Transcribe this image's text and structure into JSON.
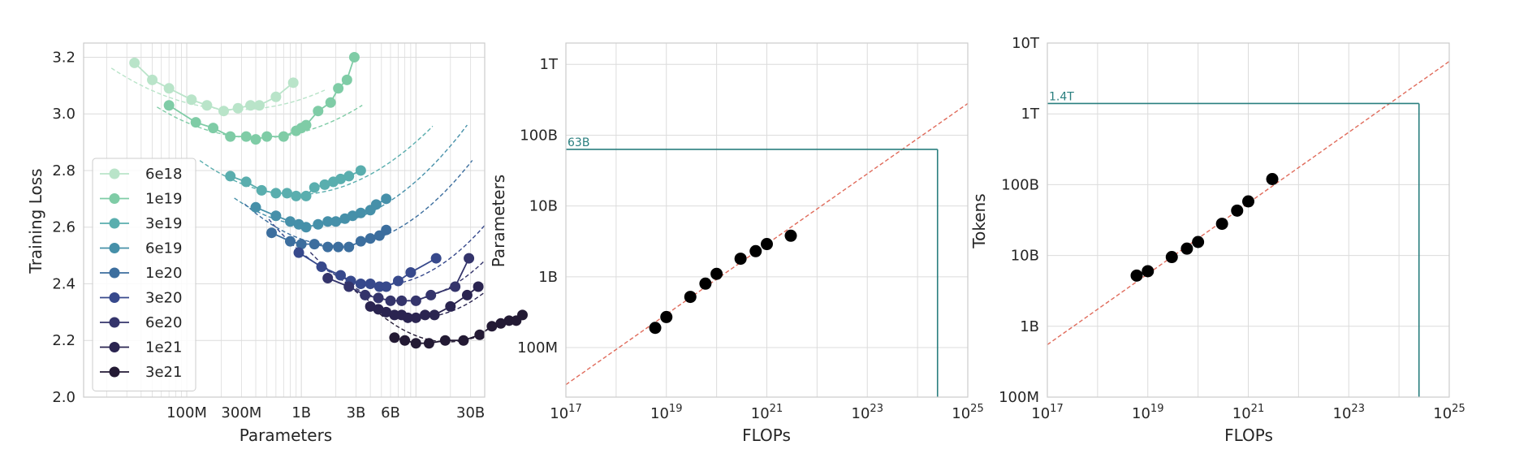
{
  "chart_data": [
    {
      "type": "line",
      "xlabel": "Parameters",
      "ylabel": "Training Loss",
      "xscale": "log",
      "ylim": [
        2.0,
        3.25
      ],
      "yticks": [
        2.0,
        2.2,
        2.4,
        2.6,
        2.8,
        3.0,
        3.2
      ],
      "ytick_labels": [
        "2.0",
        "2.2",
        "2.4",
        "2.6",
        "2.8",
        "3.0",
        "3.2"
      ],
      "xticks": [
        100000000.0,
        300000000.0,
        1000000000.0,
        3000000000.0,
        6000000000.0,
        30000000000.0
      ],
      "xtick_labels": [
        "100M",
        "300M",
        "1B",
        "3B",
        "6B",
        "30B"
      ],
      "grid": true,
      "legend_position": "lower-left",
      "series": [
        {
          "name": "6e18",
          "color": "#b9e4c9",
          "x": [
            35000000.0,
            50000000.0,
            70000000.0,
            110000000.0,
            150000000.0,
            210000000.0,
            280000000.0,
            360000000.0,
            430000000.0,
            600000000.0,
            850000000.0
          ],
          "y": [
            3.18,
            3.12,
            3.09,
            3.05,
            3.03,
            3.01,
            3.02,
            3.03,
            3.03,
            3.06,
            3.11
          ],
          "fit": {
            "min_x": 280000000.0,
            "min_y": 3.015,
            "curvature": 0.12,
            "x_from": 22000000.0,
            "x_to": 1600000000.0
          }
        },
        {
          "name": "1e19",
          "color": "#7fcca6",
          "x": [
            70000000.0,
            120000000.0,
            170000000.0,
            240000000.0,
            330000000.0,
            400000000.0,
            500000000.0,
            700000000.0,
            900000000.0,
            1000000000.0,
            1100000000.0,
            1400000000.0,
            1800000000.0,
            2100000000.0,
            2500000000.0,
            2900000000.0
          ],
          "y": [
            3.03,
            2.97,
            2.95,
            2.92,
            2.92,
            2.91,
            2.92,
            2.92,
            2.94,
            2.95,
            2.96,
            3.01,
            3.04,
            3.09,
            3.12,
            3.2
          ],
          "fit": {
            "min_x": 420000000.0,
            "min_y": 2.915,
            "curvature": 0.14,
            "x_from": 55000000.0,
            "x_to": 3400000000.0
          }
        },
        {
          "name": "3e19",
          "color": "#5aaeae",
          "x": [
            240000000.0,
            330000000.0,
            450000000.0,
            600000000.0,
            750000000.0,
            900000000.0,
            1100000000.0,
            1300000000.0,
            1600000000.0,
            1900000000.0,
            2200000000.0,
            2600000000.0,
            3300000000.0
          ],
          "y": [
            2.78,
            2.76,
            2.73,
            2.72,
            2.72,
            2.71,
            2.71,
            2.74,
            2.75,
            2.76,
            2.77,
            2.78,
            2.8
          ],
          "fit": {
            "min_x": 900000000.0,
            "min_y": 2.715,
            "curvature": 0.17,
            "x_from": 130000000.0,
            "x_to": 14000000000.0
          }
        },
        {
          "name": "6e19",
          "color": "#4690a9",
          "x": [
            400000000.0,
            600000000.0,
            800000000.0,
            950000000.0,
            1100000000.0,
            1400000000.0,
            1700000000.0,
            2000000000.0,
            2400000000.0,
            2800000000.0,
            3300000000.0,
            4000000000.0,
            4500000000.0,
            5500000000.0
          ],
          "y": [
            2.67,
            2.64,
            2.62,
            2.61,
            2.6,
            2.61,
            2.62,
            2.62,
            2.63,
            2.64,
            2.65,
            2.66,
            2.68,
            2.7
          ],
          "fit": {
            "min_x": 1300000000.0,
            "min_y": 2.605,
            "curvature": 0.2,
            "x_from": 260000000.0,
            "x_to": 28000000000.0
          }
        },
        {
          "name": "1e20",
          "color": "#3c6e9e",
          "x": [
            550000000.0,
            800000000.0,
            1000000000.0,
            1300000000.0,
            1700000000.0,
            2100000000.0,
            2600000000.0,
            3300000000.0,
            4000000000.0,
            4800000000.0,
            5500000000.0
          ],
          "y": [
            2.58,
            2.55,
            2.54,
            2.54,
            2.53,
            2.53,
            2.53,
            2.55,
            2.56,
            2.57,
            2.59
          ],
          "fit": {
            "min_x": 2100000000.0,
            "min_y": 2.535,
            "curvature": 0.22,
            "x_from": 320000000.0,
            "x_to": 31000000000.0
          }
        },
        {
          "name": "3e20",
          "color": "#37498c",
          "x": [
            950000000.0,
            1500000000.0,
            2200000000.0,
            2700000000.0,
            3300000000.0,
            4000000000.0,
            4800000000.0,
            5500000000.0,
            7000000000.0,
            9000000000.0,
            15000000000.0
          ],
          "y": [
            2.51,
            2.46,
            2.43,
            2.41,
            2.4,
            2.4,
            2.39,
            2.39,
            2.41,
            2.44,
            2.49
          ],
          "fit": {
            "min_x": 4800000000.0,
            "min_y": 2.395,
            "curvature": 0.25,
            "x_from": 520000000.0,
            "x_to": 60000000000.0
          }
        },
        {
          "name": "6e20",
          "color": "#34346b",
          "x": [
            1700000000.0,
            2600000000.0,
            3600000000.0,
            4700000000.0,
            6000000000.0,
            7500000000.0,
            10000000000.0,
            13500000000.0,
            22000000000.0,
            29000000000.0
          ],
          "y": [
            2.42,
            2.39,
            2.36,
            2.35,
            2.34,
            2.34,
            2.34,
            2.36,
            2.39,
            2.49
          ],
          "fit": {
            "min_x": 7500000000.0,
            "min_y": 2.34,
            "curvature": 0.27,
            "x_from": 1200000000.0,
            "x_to": 75000000000.0
          }
        },
        {
          "name": "1e21",
          "color": "#2a2450",
          "x": [
            4000000000.0,
            4700000000.0,
            5500000000.0,
            6500000000.0,
            7500000000.0,
            8500000000.0,
            10000000000.0,
            12000000000.0,
            14500000000.0,
            20000000000.0,
            28000000000.0,
            35000000000.0
          ],
          "y": [
            2.32,
            2.31,
            2.3,
            2.29,
            2.29,
            2.28,
            2.28,
            2.29,
            2.29,
            2.32,
            2.36,
            2.39
          ],
          "fit": {
            "min_x": 11000000000.0,
            "min_y": 2.283,
            "curvature": 0.28,
            "x_from": 2400000000.0,
            "x_to": 80000000000.0
          }
        },
        {
          "name": "3e21",
          "color": "#231a34",
          "x": [
            6500000000.0,
            8000000000.0,
            10000000000.0,
            13000000000.0,
            18000000000.0,
            26000000000.0,
            36000000000.0,
            46000000000.0,
            55000000000.0,
            65000000000.0,
            75000000000.0,
            85000000000.0
          ],
          "y": [
            2.21,
            2.2,
            2.19,
            2.19,
            2.2,
            2.2,
            2.22,
            2.25,
            2.26,
            2.27,
            2.27,
            2.29
          ],
          "fit": {
            "min_x": 19000000000.0,
            "min_y": 2.195,
            "curvature": 0.28,
            "x_from": 4000000000.0,
            "x_to": 220000000000.0
          }
        }
      ]
    },
    {
      "type": "scatter",
      "xlabel": "FLOPs",
      "ylabel": "Parameters",
      "xscale": "log",
      "yscale": "log",
      "xlim": [
        1e+17,
        1e+25
      ],
      "ylim": [
        20000000.0,
        2000000000000.0
      ],
      "xticks": [
        1e+17,
        1e+19,
        1e+21,
        1e+23,
        1e+25
      ],
      "xtick_labels": [
        [
          "10",
          "17"
        ],
        [
          "10",
          "19"
        ],
        [
          "10",
          "21"
        ],
        [
          "10",
          "23"
        ],
        [
          "10",
          "25"
        ]
      ],
      "yticks": [
        100000000.0,
        1000000000.0,
        10000000000.0,
        100000000000.0,
        1000000000000.0
      ],
      "ytick_labels": [
        "100M",
        "1B",
        "10B",
        "100B",
        "1T"
      ],
      "grid": true,
      "points": {
        "x": [
          6e+18,
          1e+19,
          3e+19,
          6e+19,
          1e+20,
          3e+20,
          6e+20,
          1e+21,
          3e+21
        ],
        "y": [
          190000000.0,
          270000000.0,
          520000000.0,
          800000000.0,
          1100000000.0,
          1800000000.0,
          2300000000.0,
          2900000000.0,
          3800000000.0
        ]
      },
      "fit_line": {
        "x": [
          1e+17,
          1e+25
        ],
        "y": [
          30000000.0,
          280000000000.0
        ],
        "color": "#e06b5b"
      },
      "annotation": {
        "label": "63B",
        "x": 2.5e+24,
        "y": 63000000000.0,
        "color": "#2a7f7f"
      }
    },
    {
      "type": "scatter",
      "xlabel": "FLOPs",
      "ylabel": "Tokens",
      "xscale": "log",
      "yscale": "log",
      "xlim": [
        1e+17,
        1e+25
      ],
      "ylim": [
        100000000.0,
        10000000000000.0
      ],
      "xticks": [
        1e+17,
        1e+19,
        1e+21,
        1e+23,
        1e+25
      ],
      "xtick_labels": [
        [
          "10",
          "17"
        ],
        [
          "10",
          "19"
        ],
        [
          "10",
          "21"
        ],
        [
          "10",
          "23"
        ],
        [
          "10",
          "25"
        ]
      ],
      "yticks": [
        100000000.0,
        1000000000.0,
        10000000000.0,
        100000000000.0,
        1000000000000.0,
        10000000000000.0
      ],
      "ytick_labels": [
        "100M",
        "1B",
        "10B",
        "100B",
        "1T",
        "10T"
      ],
      "grid": true,
      "points": {
        "x": [
          6e+18,
          1e+19,
          3e+19,
          6e+19,
          1e+20,
          3e+20,
          6e+20,
          1e+21,
          3e+21
        ],
        "y": [
          5200000000.0,
          6000000000.0,
          9500000000.0,
          12500000000.0,
          15500000000.0,
          28000000000.0,
          43000000000.0,
          58000000000.0,
          120000000000.0
        ]
      },
      "fit_line": {
        "x": [
          1e+17,
          1e+25
        ],
        "y": [
          550000000.0,
          5500000000000.0
        ],
        "color": "#e06b5b"
      },
      "annotation": {
        "label": "1.4T",
        "x": 2.5e+24,
        "y": 1400000000000.0,
        "color": "#2a7f7f"
      }
    }
  ]
}
